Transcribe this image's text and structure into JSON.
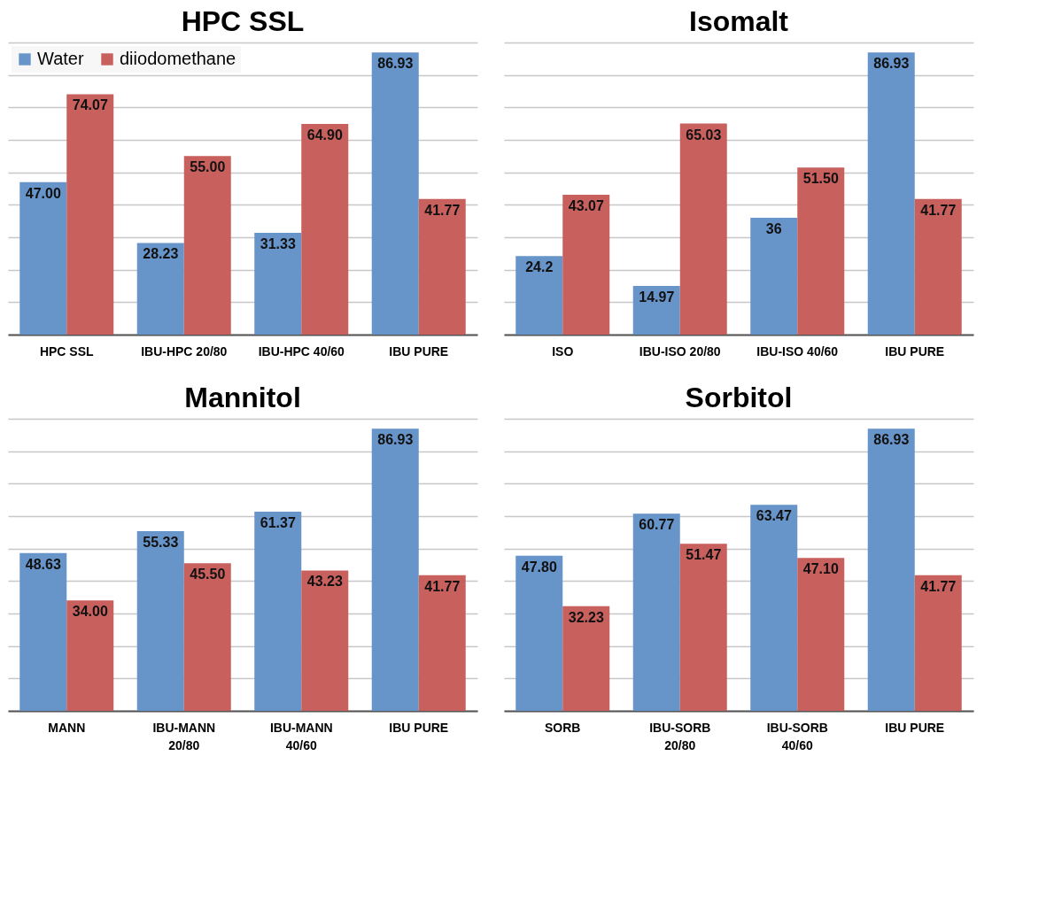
{
  "chart_data": [
    {
      "type": "bar",
      "title": "HPC SSL",
      "categories": [
        "HPC SSL",
        "IBU-HPC 20/80",
        "IBU-HPC 40/60",
        "IBU PURE"
      ],
      "series": [
        {
          "name": "Water",
          "color": "#6794c9",
          "values": [
            47.0,
            28.23,
            31.33,
            86.93
          ],
          "value_labels": [
            "47.00",
            "28.23",
            "31.33",
            "86.93"
          ]
        },
        {
          "name": "diiodomethane",
          "color": "#c8605e",
          "values": [
            74.07,
            55.0,
            64.9,
            41.77
          ],
          "value_labels": [
            "74.07",
            "55.00",
            "64.90",
            "41.77"
          ]
        }
      ],
      "tick_labels": "x",
      "grid": "y",
      "legend": "top left"
    },
    {
      "type": "bar",
      "title": "Isomalt",
      "categories": [
        "ISO",
        "IBU-ISO 20/80",
        "IBU-ISO 40/60",
        "IBU PURE"
      ],
      "series": [
        {
          "name": "Water",
          "color": "#6794c9",
          "values": [
            24.2,
            14.97,
            36,
            86.93
          ],
          "value_labels": [
            "24.2",
            "14.97",
            "36",
            "86.93"
          ]
        },
        {
          "name": "diiodomethane",
          "color": "#c8605e",
          "values": [
            43.07,
            65.03,
            51.5,
            41.77
          ],
          "value_labels": [
            "43.07",
            "65.03",
            "51.50",
            "41.77"
          ]
        }
      ],
      "tick_labels": "x",
      "grid": "y",
      "legend": "top left"
    },
    {
      "type": "bar",
      "title": "Mannitol",
      "categories": [
        "MANN",
        "IBU-MANN 20/80",
        "IBU-MANN 40/60",
        "IBU PURE"
      ],
      "series": [
        {
          "name": "Water",
          "color": "#6794c9",
          "values": [
            48.63,
            55.33,
            61.37,
            86.93
          ],
          "value_labels": [
            "48.63",
            "55.33",
            "61.37",
            "86.93"
          ]
        },
        {
          "name": "diiodomethane",
          "color": "#c8605e",
          "values": [
            34.0,
            45.5,
            43.23,
            41.77
          ],
          "value_labels": [
            "34.00",
            "45.50",
            "43.23",
            "41.77"
          ]
        }
      ],
      "tick_labels": "x",
      "grid": "y",
      "legend": "top left"
    },
    {
      "type": "bar",
      "title": "Sorbitol",
      "categories": [
        "SORB",
        "IBU-SORB 20/80",
        "IBU-SORB 40/60",
        "IBU PURE"
      ],
      "series": [
        {
          "name": "Water",
          "color": "#6794c9",
          "values": [
            47.8,
            60.77,
            63.47,
            86.93
          ],
          "value_labels": [
            "47.80",
            "60.77",
            "63.47",
            "86.93"
          ]
        },
        {
          "name": "diiodomethane",
          "color": "#c8605e",
          "values": [
            32.23,
            51.47,
            47.1,
            41.77
          ],
          "value_labels": [
            "32.23",
            "51.47",
            "47.10",
            "41.77"
          ]
        }
      ],
      "tick_labels": "x",
      "grid": "y",
      "legend": "top left"
    }
  ]
}
